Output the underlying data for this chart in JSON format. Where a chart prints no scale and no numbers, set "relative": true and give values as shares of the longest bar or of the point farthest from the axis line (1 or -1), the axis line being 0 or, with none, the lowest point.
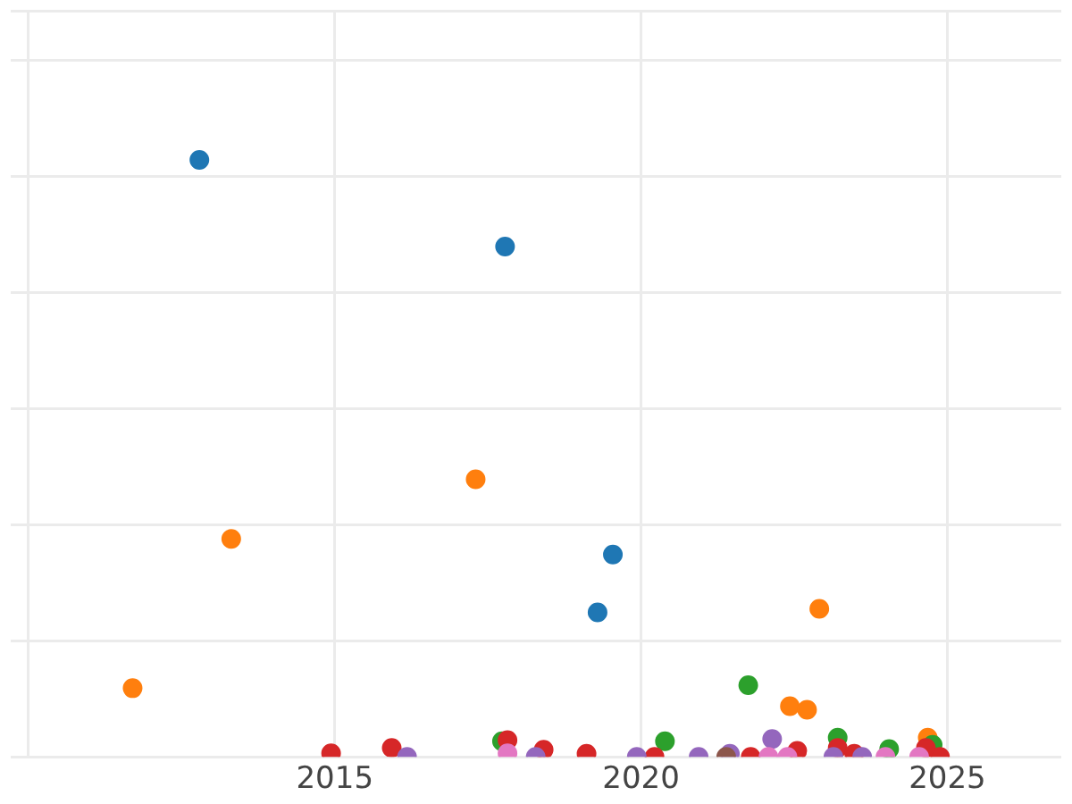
{
  "chart_data": {
    "type": "scatter",
    "relative": true,
    "grid": true,
    "marker": "circle",
    "legend": false,
    "xlim": [
      2009.71,
      2026.86
    ],
    "xticks": [
      {
        "value": 2010,
        "label": null
      },
      2015,
      2020,
      2025
    ],
    "series": [
      {
        "color": "#1f77b4",
        "x": [
          2012.79,
          2017.78,
          2019.54,
          2019.29
        ],
        "values": [
          1.0,
          0.855,
          0.339,
          0.242
        ]
      },
      {
        "color": "#ff7f0e",
        "x": [
          2011.7,
          2013.31,
          2017.3,
          2022.91,
          2022.43,
          2022.71,
          2024.68
        ],
        "values": [
          0.115,
          0.365,
          0.465,
          0.248,
          0.085,
          0.079,
          0.032
        ]
      },
      {
        "color": "#2ca02c",
        "x": [
          2021.75,
          2020.39,
          2017.73,
          2023.21,
          2024.05,
          2024.76
        ],
        "values": [
          0.12,
          0.026,
          0.026,
          0.032,
          0.013,
          0.02
        ]
      },
      {
        "color": "#d62728",
        "x": [
          2014.94,
          2015.93,
          2017.82,
          2018.41,
          2019.11,
          2020.22,
          2021.79,
          2022.55,
          2023.21,
          2023.48,
          2024.65,
          2024.88
        ],
        "values": [
          0.006,
          0.015,
          0.028,
          0.012,
          0.005,
          0,
          0,
          0.01,
          0.015,
          0.005,
          0.015,
          0
        ]
      },
      {
        "color": "#9467bd",
        "x": [
          2016.18,
          2018.28,
          2019.93,
          2020.94,
          2021.45,
          2022.14,
          2023.14,
          2023.61
        ],
        "values": [
          0,
          0,
          0,
          0,
          0.005,
          0.03,
          0,
          0
        ]
      },
      {
        "color": "#8c564b",
        "x": [
          2021.39
        ],
        "values": [
          0
        ]
      },
      {
        "color": "#e377c2",
        "x": [
          2017.82,
          2022.08,
          2022.39,
          2023.99,
          2024.54
        ],
        "values": [
          0.006,
          0,
          0,
          0,
          0
        ]
      }
    ]
  }
}
